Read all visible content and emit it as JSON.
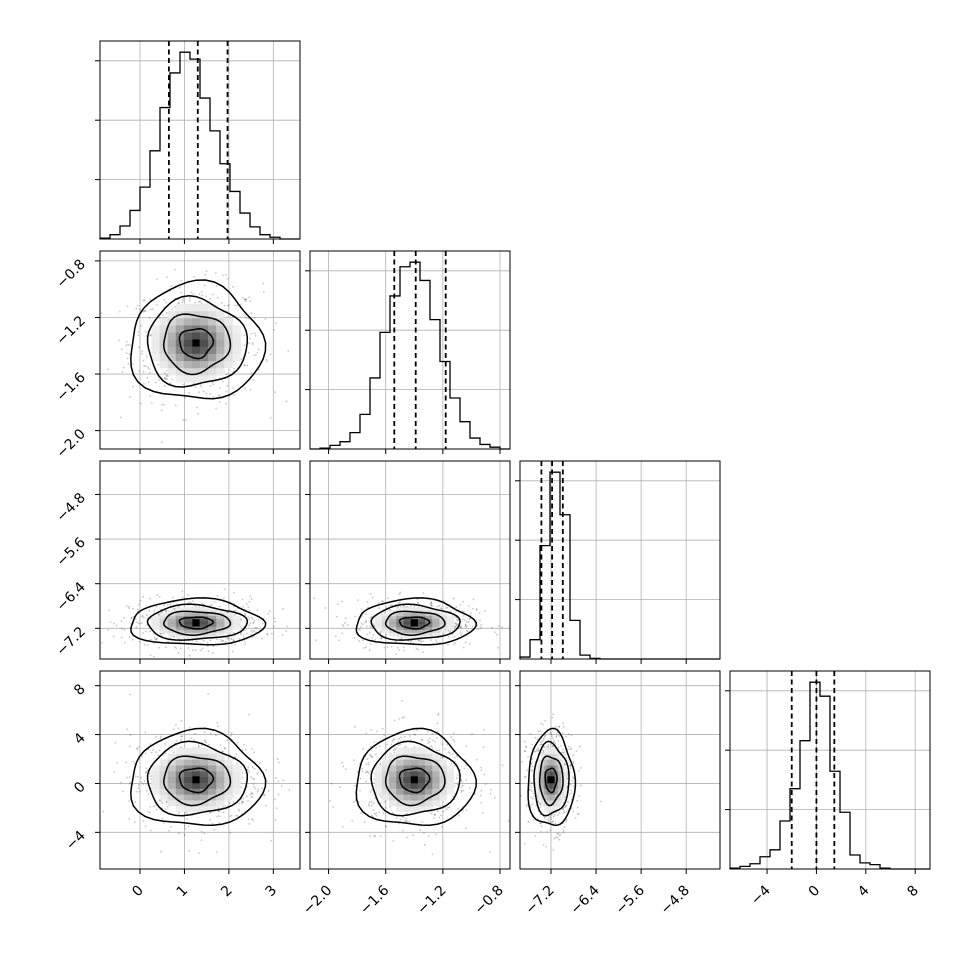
{
  "chart_data": {
    "type": "corner",
    "n_parameters": 4,
    "grid": true,
    "parameters": [
      {
        "range": [
          -0.9,
          3.6
        ],
        "ticks": [
          0,
          1,
          2,
          3
        ],
        "tick_labels": [
          "0",
          "1",
          "2",
          "3"
        ],
        "median": 1.3,
        "q16": 0.65,
        "q84": 1.97,
        "sigma": 0.65
      },
      {
        "range": [
          -2.13,
          -0.73
        ],
        "ticks": [
          -2.0,
          -1.6,
          -1.2,
          -0.8
        ],
        "tick_labels": [
          "−2.0",
          "−1.6",
          "−1.2",
          "−0.8"
        ],
        "median": -1.39,
        "q16": -1.54,
        "q84": -1.18,
        "sigma": 0.18
      },
      {
        "range": [
          -7.75,
          -4.2
        ],
        "ticks": [
          -7.2,
          -6.4,
          -5.6,
          -4.8
        ],
        "tick_labels": [
          "−7.2",
          "−6.4",
          "−5.6",
          "−4.8"
        ],
        "median": -7.18,
        "q16": -7.37,
        "q84": -6.99,
        "sigma": 0.18
      },
      {
        "range": [
          -7.0,
          9.2
        ],
        "ticks": [
          -4,
          0,
          4,
          8
        ],
        "tick_labels": [
          "−4",
          "0",
          "4",
          "8"
        ],
        "median": 0.0,
        "q16": -2.0,
        "q84": 1.45,
        "sigma": 1.7
      }
    ],
    "histograms": [
      {
        "edges": [
          -0.9,
          -0.675,
          -0.45,
          -0.225,
          0.0,
          0.225,
          0.45,
          0.675,
          0.9,
          1.125,
          1.35,
          1.575,
          1.8,
          2.025,
          2.25,
          2.475,
          2.7,
          2.925,
          3.15,
          3.375,
          3.6
        ],
        "counts": [
          1,
          5,
          15,
          33,
          60,
          102,
          152,
          192,
          216,
          208,
          163,
          125,
          87,
          55,
          30,
          14,
          5,
          2,
          0,
          0
        ]
      },
      {
        "edges": [
          -2.13,
          -2.06,
          -1.99,
          -1.92,
          -1.85,
          -1.78,
          -1.71,
          -1.64,
          -1.57,
          -1.5,
          -1.43,
          -1.36,
          -1.29,
          -1.22,
          -1.15,
          -1.08,
          -1.01,
          -0.94,
          -0.87,
          -0.8,
          -0.73
        ],
        "counts": [
          0,
          1,
          4,
          8,
          18,
          38,
          78,
          128,
          168,
          200,
          205,
          185,
          142,
          96,
          56,
          30,
          12,
          5,
          2,
          0
        ]
      },
      {
        "edges": [
          -7.75,
          -7.5725,
          -7.395,
          -7.2175,
          -7.04,
          -6.8625,
          -6.685,
          -6.5075,
          -6.33,
          -6.1525,
          -5.975,
          -5.7975,
          -5.62,
          -5.4425,
          -5.265,
          -5.0875,
          -4.91,
          -4.7325,
          -4.555,
          -4.3775,
          -4.2
        ],
        "counts": [
          3,
          30,
          176,
          290,
          224,
          60,
          6,
          1,
          0,
          0,
          0,
          0,
          0,
          0,
          0,
          0,
          0,
          0,
          0,
          0
        ]
      },
      {
        "edges": [
          -7.0,
          -6.19,
          -5.38,
          -4.57,
          -3.76,
          -2.95,
          -2.14,
          -1.33,
          -0.52,
          0.29,
          1.1,
          1.91,
          2.72,
          3.53,
          4.34,
          5.15,
          5.96,
          6.77,
          7.58,
          8.39,
          9.2
        ],
        "counts": [
          1,
          3,
          6,
          14,
          22,
          55,
          92,
          147,
          214,
          198,
          112,
          65,
          16,
          7,
          5,
          1,
          0,
          0,
          0,
          0
        ]
      }
    ],
    "pairs": [
      {
        "x_param": 0,
        "y_param": 1,
        "mean": [
          1.26,
          -1.38
        ],
        "contour_sigmas": [
          0.5,
          1.0,
          1.5,
          2.0
        ]
      },
      {
        "x_param": 0,
        "y_param": 2,
        "mean": [
          1.26,
          -7.1
        ],
        "contour_sigmas": [
          0.5,
          1.0,
          1.5,
          2.0
        ]
      },
      {
        "x_param": 1,
        "y_param": 2,
        "mean": [
          -1.4,
          -7.1
        ],
        "contour_sigmas": [
          0.5,
          1.0,
          1.5,
          2.0
        ]
      },
      {
        "x_param": 0,
        "y_param": 3,
        "mean": [
          1.26,
          0.3
        ],
        "contour_sigmas": [
          0.5,
          1.0,
          1.5,
          2.0
        ]
      },
      {
        "x_param": 1,
        "y_param": 3,
        "mean": [
          -1.4,
          0.3
        ],
        "contour_sigmas": [
          0.5,
          1.0,
          1.5,
          2.0
        ]
      },
      {
        "x_param": 2,
        "y_param": 3,
        "mean": [
          -7.2,
          0.3
        ],
        "contour_sigmas": [
          0.5,
          1.0,
          1.5,
          2.0
        ]
      }
    ],
    "n_scatter_points_per_panel": 650
  }
}
